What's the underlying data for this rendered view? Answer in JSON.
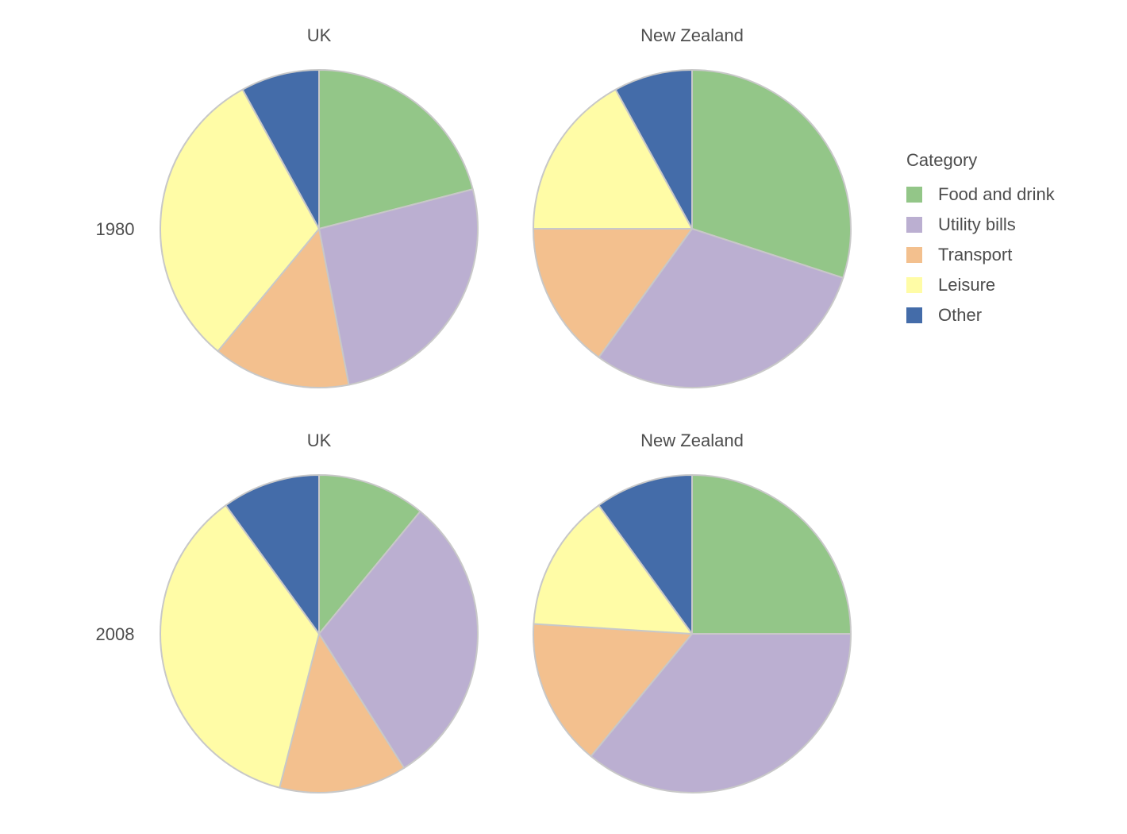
{
  "chart_data": {
    "type": "pie",
    "legend": {
      "title": "Category",
      "placement": "right",
      "entries": [
        {
          "name": "Food and drink",
          "color": "#93c688"
        },
        {
          "name": "Utility bills",
          "color": "#bbafd1"
        },
        {
          "name": "Transport",
          "color": "#f3c08e"
        },
        {
          "name": "Leisure",
          "color": "#fffca6"
        },
        {
          "name": "Other",
          "color": "#446ca9"
        }
      ]
    },
    "rows": [
      "1980",
      "2008"
    ],
    "columns": [
      "UK",
      "New Zealand"
    ],
    "categories": [
      "Food and drink",
      "Utility bills",
      "Transport",
      "Leisure",
      "Other"
    ],
    "panels": [
      {
        "title": "UK",
        "row": "1980",
        "values": [
          21,
          26,
          14,
          31,
          8
        ]
      },
      {
        "title": "New Zealand",
        "row": "1980",
        "values": [
          30,
          30,
          15,
          17,
          8
        ]
      },
      {
        "title": "UK",
        "row": "2008",
        "values": [
          11,
          30,
          13,
          36,
          10
        ]
      },
      {
        "title": "New Zealand",
        "row": "2008",
        "values": [
          25,
          36,
          15,
          14,
          10
        ]
      }
    ]
  }
}
